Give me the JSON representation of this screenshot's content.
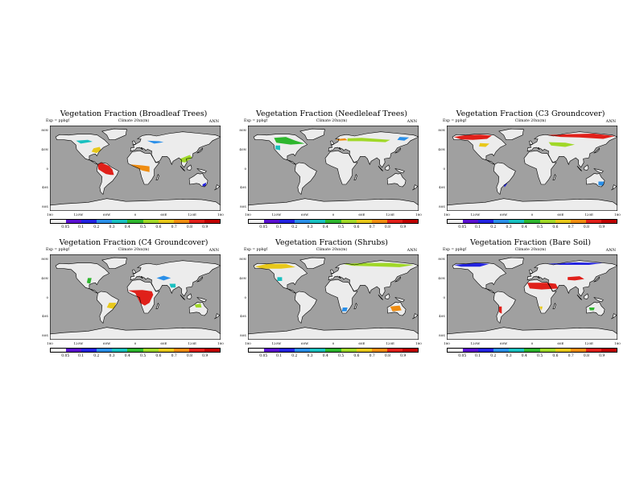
{
  "panels": [
    {
      "title": "Vegetation Fraction (Broadleaf Trees)",
      "left_note": "Exp = ppbgf",
      "center_note": "Climate 20xx(m)",
      "right_note": "ANN",
      "veg": "broadleaf"
    },
    {
      "title": "Vegetation Fraction (Needleleaf Trees)",
      "left_note": "Exp = ppbgf",
      "center_note": "Climate 20xx(m)",
      "right_note": "ANN",
      "veg": "needleleaf"
    },
    {
      "title": "Vegetation Fraction (C3 Groundcover)",
      "left_note": "Exp = ppbgf",
      "center_note": "Climate 20xx(m)",
      "right_note": "ANN",
      "veg": "c3"
    },
    {
      "title": "Vegetation Fraction (C4 Groundcover)",
      "left_note": "Exp = ppbgf",
      "center_note": "Climate 20xx(m)",
      "right_note": "ANN",
      "veg": "c4"
    },
    {
      "title": "Vegetation Fraction (Shrubs)",
      "left_note": "Exp = ppbgf",
      "center_note": "Climate 20xx(m)",
      "right_note": "ANN",
      "veg": "shrubs"
    },
    {
      "title": "Vegetation Fraction (Bare Soil)",
      "left_note": "Exp = ppbgf",
      "center_note": "Climate 20xx(m)",
      "right_note": "ANN",
      "veg": "bare"
    }
  ],
  "lat_labels": [
    "80N",
    "40N",
    "0",
    "40S",
    "80S"
  ],
  "lon_labels": [
    "180",
    "120W",
    "60W",
    "0",
    "60E",
    "120E",
    "180"
  ],
  "colorbar": {
    "labels": [
      "0.05",
      "0.1",
      "0.2",
      "0.3",
      "0.4",
      "0.5",
      "0.6",
      "0.7",
      "0.8",
      "0.9"
    ],
    "colors": [
      "#f0f0f0",
      "#5a10d0",
      "#2222e0",
      "#2a8fe8",
      "#19c0c0",
      "#2eb62e",
      "#a0d828",
      "#e8c81a",
      "#ef8c10",
      "#e0201a",
      "#c00000"
    ]
  },
  "colors": {
    "ocean": "#a0a0a0",
    "land": "#ececec",
    "coast": "#000000"
  }
}
